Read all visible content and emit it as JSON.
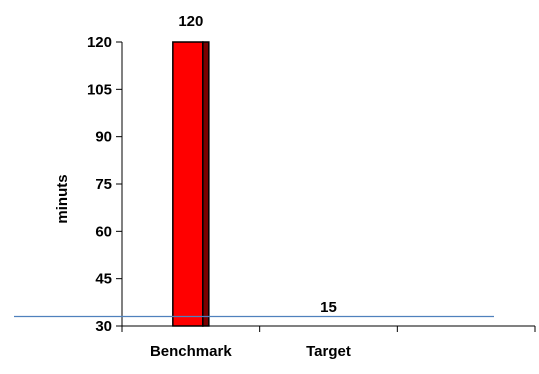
{
  "chart_data": {
    "type": "bar",
    "categories": [
      "Benchmark",
      "Target",
      ""
    ],
    "values": [
      120,
      15,
      null
    ],
    "data_labels": [
      "120",
      "15",
      ""
    ],
    "title": "",
    "xlabel": "",
    "ylabel": "minuts",
    "ylim": [
      30,
      120
    ],
    "yticks": [
      30,
      45,
      60,
      75,
      90,
      105,
      120
    ],
    "grid": false,
    "legend": "none",
    "reference_line": {
      "orientation": "horizontal",
      "y": 33
    },
    "colors": {
      "bar_fill": "#ff0000",
      "bar_side": "#7a0000",
      "bar_outline": "#000000",
      "reference_line": "#4f81bd",
      "axis": "#000000"
    }
  }
}
